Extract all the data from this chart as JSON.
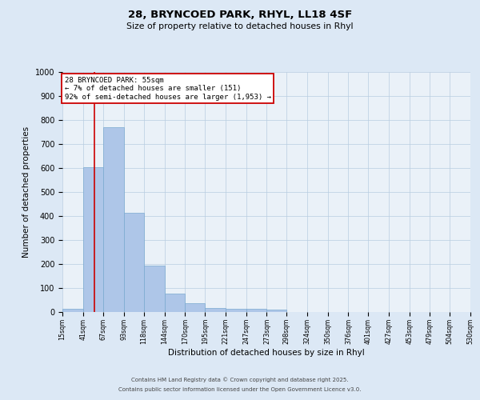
{
  "title_line1": "28, BRYNCOED PARK, RHYL, LL18 4SF",
  "title_line2": "Size of property relative to detached houses in Rhyl",
  "xlabel": "Distribution of detached houses by size in Rhyl",
  "ylabel": "Number of detached properties",
  "bin_edges": [
    15,
    41,
    67,
    93,
    118,
    144,
    170,
    195,
    221,
    247,
    273,
    298,
    324,
    350,
    376,
    401,
    427,
    453,
    479,
    504,
    530
  ],
  "bar_heights": [
    15,
    605,
    770,
    415,
    195,
    78,
    38,
    18,
    14,
    12,
    10,
    0,
    0,
    0,
    0,
    0,
    0,
    0,
    0,
    0
  ],
  "bar_color": "#aec6e8",
  "bar_edge_color": "#7aaad0",
  "vline_x": 55,
  "vline_color": "#cc0000",
  "ylim": [
    0,
    1000
  ],
  "yticks": [
    0,
    100,
    200,
    300,
    400,
    500,
    600,
    700,
    800,
    900,
    1000
  ],
  "annotation_text": "28 BRYNCOED PARK: 55sqm\n← 7% of detached houses are smaller (151)\n92% of semi-detached houses are larger (1,953) →",
  "annotation_box_color": "#ffffff",
  "annotation_box_edge": "#cc0000",
  "footer_line1": "Contains HM Land Registry data © Crown copyright and database right 2025.",
  "footer_line2": "Contains public sector information licensed under the Open Government Licence v3.0.",
  "bg_color": "#dce8f5",
  "plot_bg_color": "#eaf1f8"
}
